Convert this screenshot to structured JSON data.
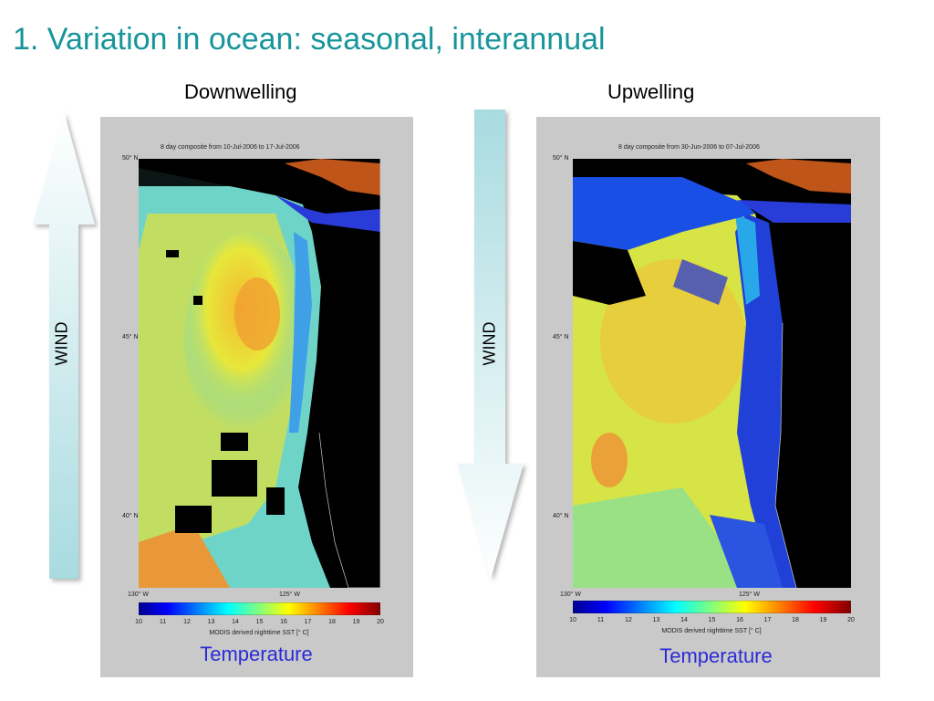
{
  "slide": {
    "title": "1. Variation in ocean: seasonal, interannual"
  },
  "panels": [
    {
      "heading": "Downwelling",
      "map_title": "8 day composite from 10-Jul-2006 to 17-Jul-2006",
      "lat_labels": [
        "50° N",
        "45° N",
        "40° N"
      ],
      "lon_labels": [
        "130° W",
        "125° W"
      ],
      "colorbar_ticks": [
        "10",
        "11",
        "12",
        "13",
        "14",
        "15",
        "16",
        "17",
        "18",
        "19",
        "20"
      ],
      "colorbar_label": "MODIS derived nighttime SST [° C]",
      "caption": "Temperature",
      "wind_label": "WIND",
      "wind_direction": "up"
    },
    {
      "heading": "Upwelling",
      "map_title": "8 day composite from 30-Jun-2006 to 07-Jul-2006",
      "lat_labels": [
        "50° N",
        "45° N",
        "40° N"
      ],
      "lon_labels": [
        "130° W",
        "125° W"
      ],
      "colorbar_ticks": [
        "10",
        "11",
        "12",
        "13",
        "14",
        "15",
        "16",
        "17",
        "18",
        "19",
        "20"
      ],
      "colorbar_label": "MODIS derived nighttime SST [° C]",
      "caption": "Temperature",
      "wind_label": "WIND",
      "wind_direction": "down"
    }
  ],
  "colors": {
    "title": "#17959a",
    "caption": "#2b2bd6",
    "panel_bg": "#c9c9c9",
    "arrow_fill_top": "#ffffff",
    "arrow_fill_bottom": "#a8dbe0"
  }
}
